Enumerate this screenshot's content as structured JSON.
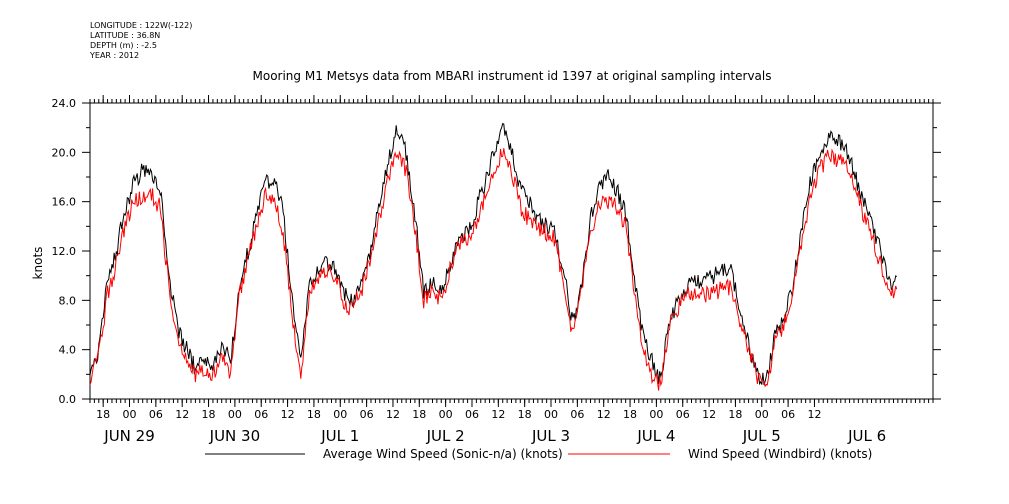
{
  "header": {
    "longitude": "LONGITUDE : 122W(-122)",
    "latitude": "LATITUDE : 36.8N",
    "depth": "DEPTH (m) : -2.5",
    "year": "YEAR : 2012"
  },
  "chart_data": {
    "type": "line",
    "title": "Mooring M1 Metsys data from MBARI instrument id 1397 at original sampling intervals",
    "ylabel": "knots",
    "xlabel": "",
    "ylim": [
      0,
      24
    ],
    "yticks": [
      "0.0",
      "4.0",
      "8.0",
      "12.0",
      "16.0",
      "20.0",
      "24.0"
    ],
    "xlim_hours": [
      -9,
      183
    ],
    "hour_ticks": [
      "18",
      "00",
      "06",
      "12",
      "18",
      "00",
      "06",
      "12",
      "18",
      "00",
      "06",
      "12",
      "18",
      "00",
      "06",
      "12",
      "18",
      "00",
      "06",
      "12",
      "18",
      "00",
      "06",
      "12",
      "18",
      "00",
      "06",
      "12"
    ],
    "date_ticks": [
      "JUN 29",
      "JUN 30",
      "JUL  1",
      "JUL  2",
      "JUL  3",
      "JUL  4",
      "JUL  5",
      "JUL  6"
    ],
    "x_hours_since_jun29_00": [
      -9,
      -7,
      -5,
      -3,
      -1,
      1,
      3,
      5,
      7,
      9,
      11,
      13,
      15,
      17,
      19,
      21,
      23,
      25,
      27,
      29,
      31,
      33,
      35,
      37,
      39,
      41,
      43,
      45,
      47,
      49,
      51,
      53,
      55,
      57,
      59,
      61,
      63,
      65,
      67,
      69,
      71,
      73,
      75,
      77,
      79,
      81,
      83,
      85,
      87,
      89,
      91,
      93,
      95,
      97,
      99,
      101,
      103,
      105,
      107,
      109,
      111,
      113,
      115,
      117,
      119,
      121,
      123,
      125,
      127,
      129,
      131,
      133,
      135,
      137,
      139,
      141,
      143,
      145,
      147,
      149,
      151,
      153,
      155,
      157,
      159,
      161,
      163,
      165,
      167,
      169,
      171,
      173,
      175,
      177,
      179,
      181,
      183
    ],
    "series": [
      {
        "name": "Average Wind Speed (Sonic-n/a) (knots)",
        "color": "#000000",
        "values": [
          2.0,
          4.0,
          9.5,
          12.0,
          15.5,
          17.5,
          18.5,
          18.5,
          17.0,
          10.0,
          5.5,
          4.0,
          2.5,
          3.0,
          2.5,
          4.5,
          3.0,
          9.0,
          12.0,
          15.0,
          17.5,
          18.0,
          15.0,
          8.0,
          3.0,
          9.0,
          10.5,
          11.0,
          10.5,
          8.5,
          8.0,
          9.5,
          12.0,
          16.0,
          19.5,
          22.0,
          20.0,
          15.0,
          8.5,
          9.5,
          8.5,
          11.0,
          13.0,
          13.5,
          15.5,
          17.5,
          20.0,
          22.5,
          20.0,
          17.0,
          16.0,
          14.5,
          14.0,
          13.5,
          10.0,
          6.0,
          9.5,
          14.5,
          17.5,
          18.0,
          17.0,
          15.0,
          10.0,
          5.0,
          3.0,
          1.5,
          6.5,
          8.0,
          9.0,
          9.5,
          9.5,
          10.0,
          10.5,
          10.5,
          7.5,
          4.5,
          2.0,
          1.5,
          5.0,
          6.5,
          9.0,
          13.5,
          17.5,
          19.5,
          21.0,
          21.0,
          20.5,
          18.5,
          16.0,
          14.5,
          12.0,
          9.5,
          9.5
        ]
      },
      {
        "name": "Wind Speed (Windbird) (knots)",
        "color": "#ff0000",
        "values": [
          1.5,
          3.5,
          8.5,
          11.0,
          14.0,
          16.0,
          16.5,
          16.5,
          15.5,
          9.0,
          5.0,
          3.5,
          2.0,
          2.5,
          2.0,
          3.5,
          2.0,
          8.5,
          11.5,
          14.0,
          16.5,
          16.5,
          13.5,
          7.0,
          2.0,
          8.5,
          10.0,
          10.5,
          10.0,
          7.5,
          7.5,
          9.0,
          11.5,
          15.0,
          18.0,
          20.0,
          18.5,
          14.0,
          8.0,
          9.0,
          8.0,
          10.5,
          12.5,
          13.0,
          14.5,
          16.5,
          18.5,
          20.0,
          18.5,
          15.5,
          14.5,
          14.0,
          13.5,
          13.0,
          9.0,
          5.0,
          9.0,
          13.5,
          16.0,
          16.0,
          15.5,
          14.0,
          9.0,
          4.0,
          2.0,
          1.0,
          6.0,
          7.5,
          8.5,
          8.5,
          8.5,
          8.5,
          9.0,
          9.0,
          6.5,
          4.0,
          1.5,
          1.0,
          4.5,
          6.0,
          8.5,
          12.5,
          16.5,
          18.5,
          19.5,
          19.5,
          19.0,
          17.5,
          15.0,
          13.5,
          11.0,
          8.5,
          9.0
        ]
      }
    ],
    "legend_position": "bottom"
  }
}
